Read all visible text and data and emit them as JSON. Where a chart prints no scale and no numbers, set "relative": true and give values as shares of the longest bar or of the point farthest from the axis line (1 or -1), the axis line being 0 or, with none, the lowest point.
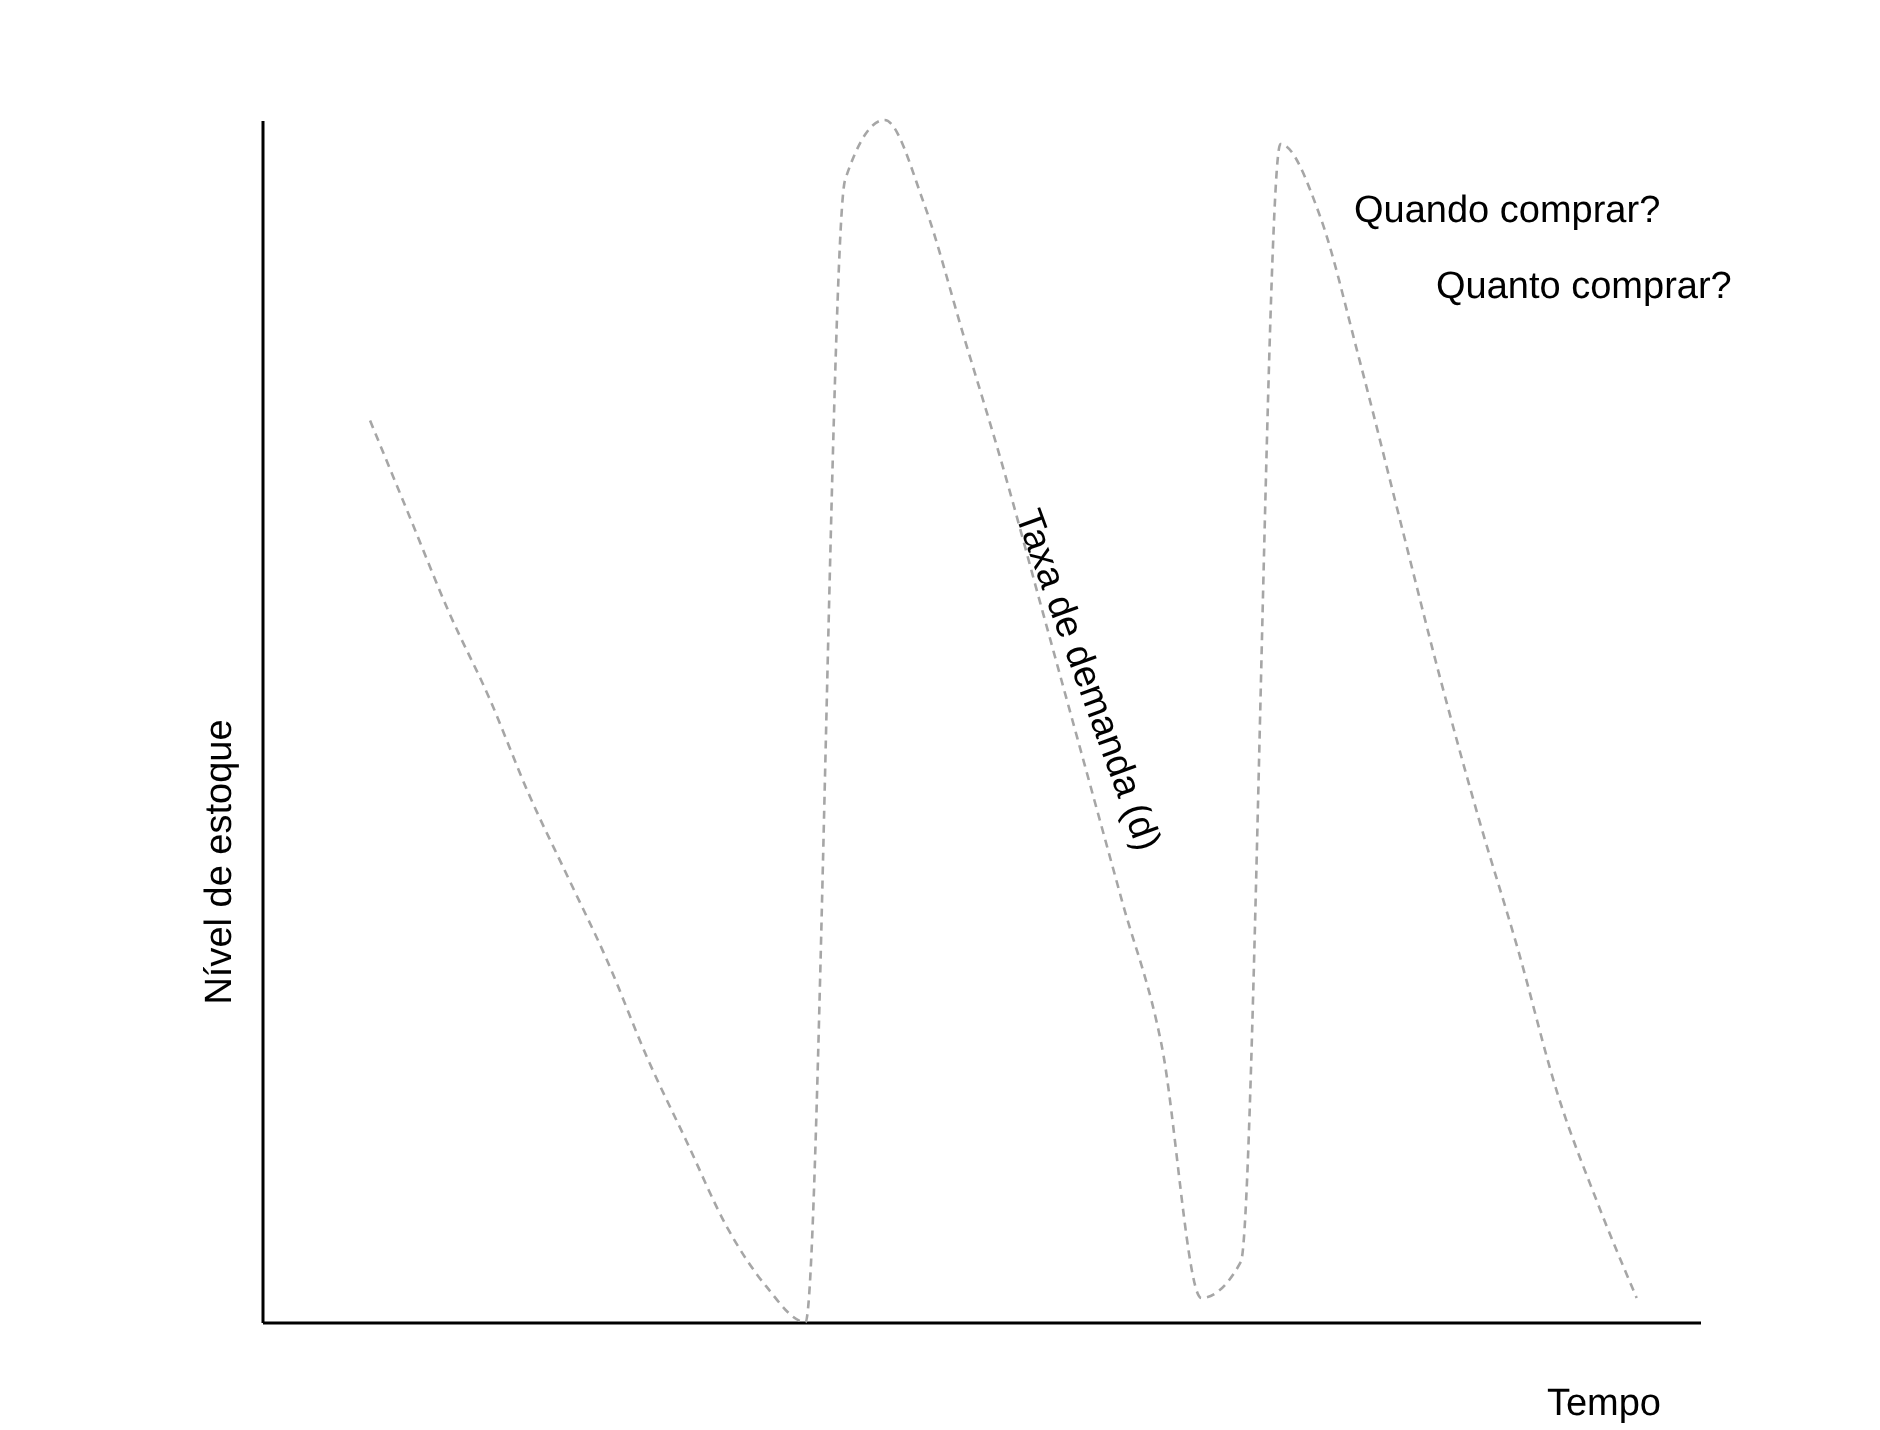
{
  "chart_data": {
    "type": "line",
    "relative": true,
    "xlabel": "Tempo",
    "ylabel": "Nível de estoque",
    "annotations": [
      "Quando comprar?",
      "Quanto comprar?",
      "Taxa de demanda (d)"
    ],
    "categories": [
      null,
      null,
      null,
      null,
      null,
      null,
      null,
      null,
      null,
      null,
      null,
      null,
      null,
      null,
      null,
      null,
      null,
      null,
      null,
      null,
      null,
      null,
      null,
      null,
      null,
      null,
      null,
      null,
      null,
      null,
      null,
      null,
      null
    ],
    "series": [
      {
        "color": "#a6a6a6",
        "values": [
          0.75,
          0.67,
          0.59,
          0.52,
          0.44,
          0.37,
          0.3,
          0.22,
          0.15,
          0.08,
          0.03,
          0,
          0.95,
          1,
          0.93,
          0.82,
          0.71,
          0.59,
          0.47,
          0.35,
          0.23,
          0.02,
          0.05,
          0.98,
          0.92,
          0.8,
          0.67,
          0.54,
          0.42,
          0.31,
          0.19,
          0.1,
          0.02
        ]
      }
    ],
    "line_style": "dashed",
    "marker": "none"
  }
}
